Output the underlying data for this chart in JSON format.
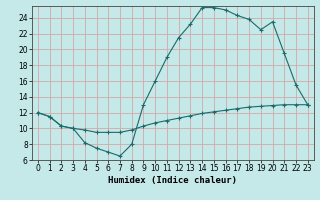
{
  "title": "",
  "xlabel": "Humidex (Indice chaleur)",
  "bg_color": "#c5e8e8",
  "grid_color": "#d4a8a8",
  "line_color": "#1a6b6b",
  "xlim": [
    -0.5,
    23.5
  ],
  "ylim": [
    6,
    25.5
  ],
  "xticks": [
    0,
    1,
    2,
    3,
    4,
    5,
    6,
    7,
    8,
    9,
    10,
    11,
    12,
    13,
    14,
    15,
    16,
    17,
    18,
    19,
    20,
    21,
    22,
    23
  ],
  "yticks": [
    6,
    8,
    10,
    12,
    14,
    16,
    18,
    20,
    22,
    24
  ],
  "line1_x": [
    0,
    1,
    2,
    3,
    4,
    5,
    6,
    7,
    8,
    9,
    10,
    11,
    12,
    13,
    14,
    15,
    16,
    17,
    18,
    19,
    20,
    21,
    22,
    23
  ],
  "line1_y": [
    12.0,
    11.5,
    10.3,
    10.0,
    8.2,
    7.5,
    7.0,
    6.5,
    8.0,
    13.0,
    16.0,
    19.0,
    21.5,
    23.2,
    25.3,
    25.3,
    25.0,
    24.3,
    23.8,
    22.5,
    23.5,
    19.5,
    15.5,
    13.0
  ],
  "line2_x": [
    0,
    1,
    2,
    3,
    4,
    5,
    6,
    7,
    8,
    9,
    10,
    11,
    12,
    13,
    14,
    15,
    16,
    17,
    18,
    19,
    20,
    21,
    22,
    23
  ],
  "line2_y": [
    12.0,
    11.5,
    10.3,
    10.0,
    9.8,
    9.5,
    9.5,
    9.5,
    9.8,
    10.3,
    10.7,
    11.0,
    11.3,
    11.6,
    11.9,
    12.1,
    12.3,
    12.5,
    12.7,
    12.8,
    12.9,
    13.0,
    13.0,
    13.0
  ]
}
